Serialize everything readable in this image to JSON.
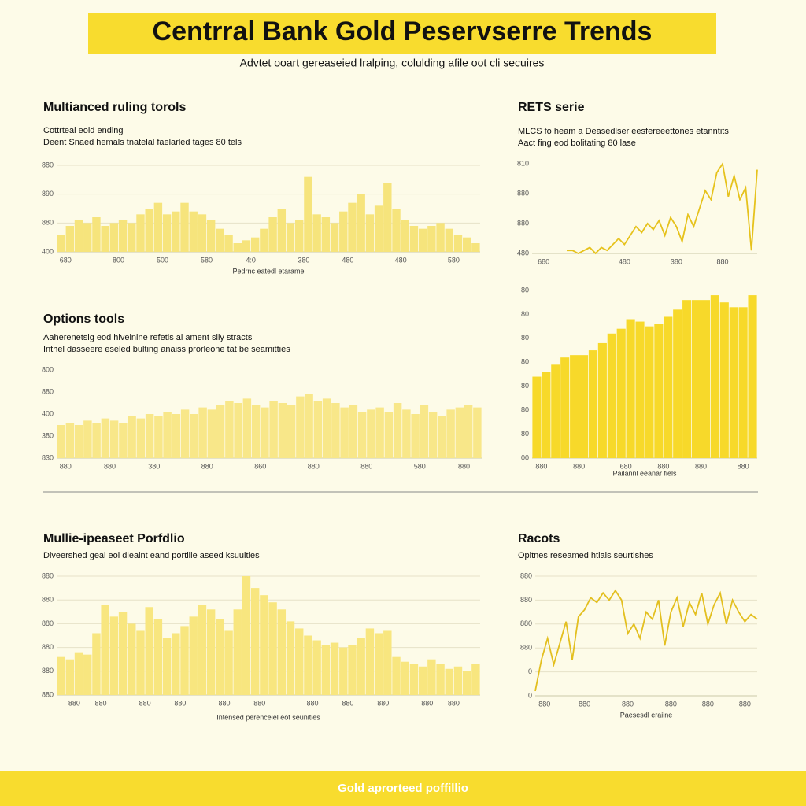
{
  "header": {
    "title": "Centrral Bank Gold Peservserre Trends",
    "subtitle": "Advtet ooart gereaseied lralping, colulding afile oot cli secuires"
  },
  "footer": {
    "text": "Gold aprorteed poffillio"
  },
  "chart_data": [
    {
      "type": "bar",
      "title": "Multianced ruling torols",
      "subtitle": [
        "Cottrteal eold ending",
        "Deent Snaed hemals tnatelal faelarled tages 80 tels"
      ],
      "xlabel": "Pedrnc eatedl etarame",
      "color": "#f6e47c",
      "grid": true,
      "values": [
        0.6,
        0.9,
        1.1,
        1.0,
        1.2,
        0.9,
        1.0,
        1.1,
        1.0,
        1.3,
        1.5,
        1.7,
        1.3,
        1.4,
        1.7,
        1.4,
        1.3,
        1.1,
        0.8,
        0.6,
        0.3,
        0.4,
        0.5,
        0.8,
        1.2,
        1.5,
        1.0,
        1.1,
        2.6,
        1.3,
        1.2,
        1.0,
        1.4,
        1.7,
        2.0,
        1.3,
        1.6,
        2.4,
        1.5,
        1.1,
        0.9,
        0.8,
        0.9,
        1.0,
        0.8,
        0.6,
        0.5,
        0.3
      ],
      "xlim": [
        0,
        48
      ],
      "ylim": [
        0,
        3
      ],
      "xticks": [
        {
          "value": 1,
          "label": "680"
        },
        {
          "value": 7,
          "label": "800"
        },
        {
          "value": 12,
          "label": "500"
        },
        {
          "value": 17,
          "label": "580"
        },
        {
          "value": 22,
          "label": "4:0"
        },
        {
          "value": 28,
          "label": "380"
        },
        {
          "value": 33,
          "label": "480"
        },
        {
          "value": 39,
          "label": "480"
        },
        {
          "value": 45,
          "label": "580"
        }
      ],
      "yticks": [
        {
          "value": 0,
          "label": "400"
        },
        {
          "value": 1,
          "label": "880"
        },
        {
          "value": 2,
          "label": "890"
        },
        {
          "value": 3,
          "label": "880"
        }
      ]
    },
    {
      "type": "line",
      "title": "RETS serie",
      "subtitle": [
        "MLCS fo heam a Deasedlser eesfereeettones etanntits",
        "Aact fing eod bolitating 80 lase"
      ],
      "color": "#e6c21c",
      "grid": false,
      "values": [
        null,
        null,
        null,
        null,
        null,
        null,
        0.1,
        0.1,
        0.0,
        0.1,
        0.2,
        0.0,
        0.2,
        0.1,
        0.3,
        0.5,
        0.3,
        0.6,
        0.9,
        0.7,
        1.0,
        0.8,
        1.1,
        0.6,
        1.2,
        0.9,
        0.4,
        1.3,
        0.9,
        1.5,
        2.1,
        1.8,
        2.7,
        3.0,
        1.9,
        2.6,
        1.8,
        2.2,
        0.1,
        2.8
      ],
      "xlim": [
        0,
        39
      ],
      "ylim": [
        0,
        3
      ],
      "xticks": [
        {
          "value": 2,
          "label": "680"
        },
        {
          "value": 16,
          "label": "480"
        },
        {
          "value": 25,
          "label": "380"
        },
        {
          "value": 33,
          "label": "880"
        }
      ],
      "yticks": [
        {
          "value": 0,
          "label": "480"
        },
        {
          "value": 1,
          "label": "880"
        },
        {
          "value": 2,
          "label": "880"
        },
        {
          "value": 3,
          "label": "810"
        }
      ]
    },
    {
      "type": "bar",
      "title": "Options tools",
      "subtitle": [
        "Aaherenetsig eod hiveinine refetis al ament sily stracts",
        "Inthel dasseere eseled bulting anaiss prorleone tat be seamitties"
      ],
      "color": "#f8e789",
      "grid": false,
      "values": [
        1.5,
        1.6,
        1.5,
        1.7,
        1.6,
        1.8,
        1.7,
        1.6,
        1.9,
        1.8,
        2.0,
        1.9,
        2.1,
        2.0,
        2.2,
        2.0,
        2.3,
        2.2,
        2.4,
        2.6,
        2.5,
        2.7,
        2.4,
        2.3,
        2.6,
        2.5,
        2.4,
        2.8,
        2.9,
        2.6,
        2.7,
        2.5,
        2.3,
        2.4,
        2.1,
        2.2,
        2.3,
        2.1,
        2.5,
        2.2,
        2.0,
        2.4,
        2.1,
        1.9,
        2.2,
        2.3,
        2.4,
        2.3
      ],
      "xlim": [
        0,
        48
      ],
      "ylim": [
        0,
        4
      ],
      "xticks": [
        {
          "value": 1,
          "label": "880"
        },
        {
          "value": 6,
          "label": "880"
        },
        {
          "value": 11,
          "label": "380"
        },
        {
          "value": 17,
          "label": "880"
        },
        {
          "value": 23,
          "label": "860"
        },
        {
          "value": 29,
          "label": "880"
        },
        {
          "value": 35,
          "label": "880"
        },
        {
          "value": 41,
          "label": "580"
        },
        {
          "value": 46,
          "label": "880"
        }
      ],
      "yticks": [
        {
          "value": 0,
          "label": "830"
        },
        {
          "value": 1,
          "label": "380"
        },
        {
          "value": 2,
          "label": "400"
        },
        {
          "value": 3,
          "label": "880"
        },
        {
          "value": 4,
          "label": "800"
        }
      ]
    },
    {
      "type": "bar",
      "title": null,
      "subtitle": [],
      "xlabel": "Pailannl eeanar fiels",
      "color": "#f7d92a",
      "grid": false,
      "values": [
        3.4,
        3.6,
        3.9,
        4.2,
        4.3,
        4.3,
        4.5,
        4.8,
        5.2,
        5.4,
        5.8,
        5.7,
        5.5,
        5.6,
        5.9,
        6.2,
        6.6,
        6.6,
        6.6,
        6.8,
        6.5,
        6.3,
        6.3,
        6.8
      ],
      "xlim": [
        0,
        24
      ],
      "ylim": [
        0,
        7
      ],
      "xticks": [
        {
          "value": 1,
          "label": "880"
        },
        {
          "value": 5,
          "label": "880"
        },
        {
          "value": 10,
          "label": "680"
        },
        {
          "value": 14,
          "label": "880"
        },
        {
          "value": 18,
          "label": "880"
        },
        {
          "value": 22.5,
          "label": "880"
        }
      ],
      "yticks": [
        {
          "value": 0,
          "label": "00"
        },
        {
          "value": 1,
          "label": "80"
        },
        {
          "value": 2,
          "label": "80"
        },
        {
          "value": 3,
          "label": "80"
        },
        {
          "value": 4,
          "label": "80"
        },
        {
          "value": 5,
          "label": "80"
        },
        {
          "value": 6,
          "label": "80"
        },
        {
          "value": 7,
          "label": "80"
        }
      ]
    },
    {
      "type": "bar",
      "title": "Mullie-ipeaseet Porfdlio",
      "subtitle": [
        "Diveershed geal eol dieaint eand portilie aseed ksuuitles"
      ],
      "xlabel": "Intensed perenceiel eot seunities",
      "color": "#f8e67f",
      "grid": true,
      "values": [
        1.6,
        1.5,
        1.8,
        1.7,
        2.6,
        3.8,
        3.3,
        3.5,
        3.0,
        2.7,
        3.7,
        3.2,
        2.4,
        2.6,
        2.9,
        3.3,
        3.8,
        3.6,
        3.2,
        2.7,
        3.6,
        5.0,
        4.5,
        4.2,
        3.9,
        3.6,
        3.1,
        2.8,
        2.5,
        2.3,
        2.1,
        2.2,
        2.0,
        2.1,
        2.4,
        2.8,
        2.6,
        2.7,
        1.6,
        1.4,
        1.3,
        1.2,
        1.5,
        1.3,
        1.1,
        1.2,
        1.0,
        1.3
      ],
      "xlim": [
        0,
        48
      ],
      "ylim": [
        0,
        5
      ],
      "xticks": [
        {
          "value": 2,
          "label": "880"
        },
        {
          "value": 5,
          "label": "880"
        },
        {
          "value": 10,
          "label": "880"
        },
        {
          "value": 14,
          "label": "880"
        },
        {
          "value": 19,
          "label": "880"
        },
        {
          "value": 23,
          "label": "880"
        },
        {
          "value": 29,
          "label": "880"
        },
        {
          "value": 33,
          "label": "880"
        },
        {
          "value": 37,
          "label": "880"
        },
        {
          "value": 42,
          "label": "880"
        },
        {
          "value": 45,
          "label": "880"
        }
      ],
      "yticks": [
        {
          "value": 0,
          "label": "880"
        },
        {
          "value": 1,
          "label": "880"
        },
        {
          "value": 2,
          "label": "880"
        },
        {
          "value": 3,
          "label": "880"
        },
        {
          "value": 4,
          "label": "880"
        },
        {
          "value": 5,
          "label": "880"
        }
      ]
    },
    {
      "type": "line",
      "title": "Racots",
      "subtitle": [
        "Opitnes reseamed htlals seurtishes"
      ],
      "xlabel": "Paesesdl eraiine",
      "color": "#e3bf1f",
      "grid": true,
      "values": [
        0.2,
        1.5,
        2.4,
        1.3,
        2.2,
        3.1,
        1.5,
        3.3,
        3.6,
        4.1,
        3.9,
        4.3,
        4.0,
        4.4,
        4.0,
        2.6,
        3.0,
        2.4,
        3.5,
        3.2,
        4.0,
        2.1,
        3.5,
        4.1,
        2.9,
        3.9,
        3.4,
        4.3,
        3.0,
        3.8,
        4.3,
        3.0,
        4.0,
        3.5,
        3.1,
        3.4,
        3.2
      ],
      "xlim": [
        0,
        36
      ],
      "ylim": [
        0,
        5
      ],
      "xticks": [
        {
          "value": 1.5,
          "label": "880"
        },
        {
          "value": 8,
          "label": "880"
        },
        {
          "value": 15,
          "label": "880"
        },
        {
          "value": 22,
          "label": "880"
        },
        {
          "value": 28,
          "label": "880"
        },
        {
          "value": 34,
          "label": "880"
        }
      ],
      "yticks": [
        {
          "value": 0,
          "label": "0"
        },
        {
          "value": 1,
          "label": "0"
        },
        {
          "value": 2,
          "label": "880"
        },
        {
          "value": 3,
          "label": "880"
        },
        {
          "value": 4,
          "label": "880"
        },
        {
          "value": 5,
          "label": "880"
        }
      ]
    }
  ]
}
